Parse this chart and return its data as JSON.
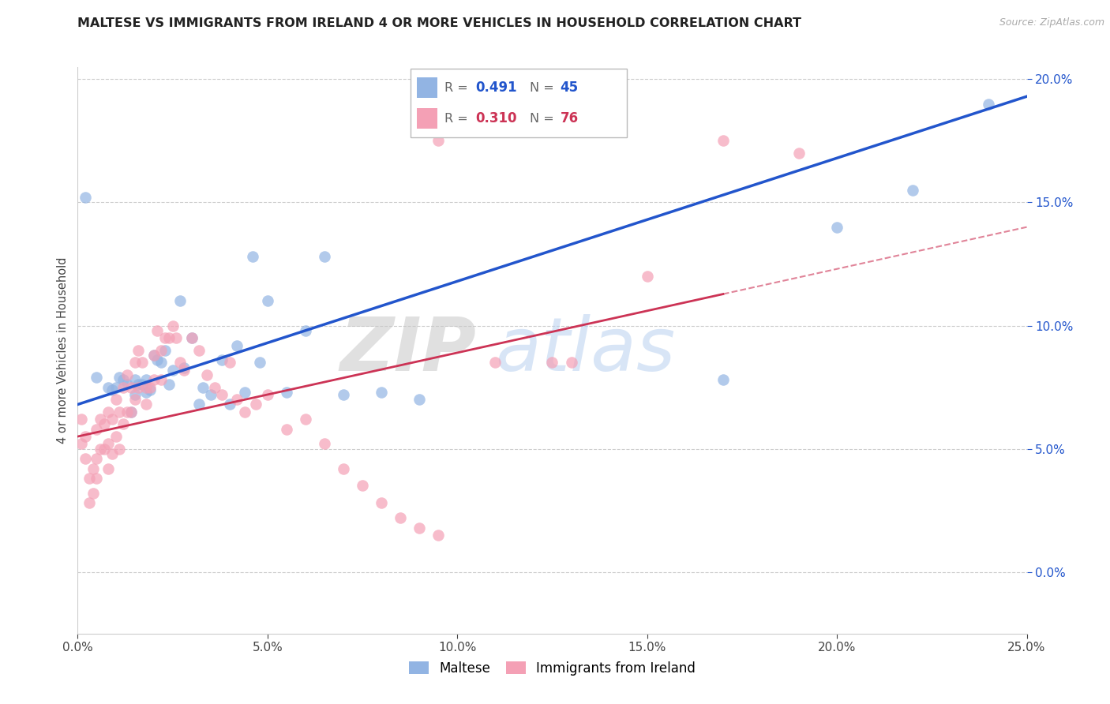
{
  "title": "MALTESE VS IMMIGRANTS FROM IRELAND 4 OR MORE VEHICLES IN HOUSEHOLD CORRELATION CHART",
  "source": "Source: ZipAtlas.com",
  "ylabel": "4 or more Vehicles in Household",
  "legend_label1": "Maltese",
  "legend_label2": "Immigrants from Ireland",
  "r1": 0.491,
  "n1": 45,
  "r2": 0.31,
  "n2": 76,
  "color1": "#92b4e3",
  "color2": "#f4a0b5",
  "line_color1": "#2255cc",
  "line_color2": "#cc3355",
  "watermark_zip": "ZIP",
  "watermark_atlas": "atlas",
  "xmin": 0.0,
  "xmax": 0.25,
  "ymin": -0.025,
  "ymax": 0.205,
  "yticks": [
    0.0,
    0.05,
    0.1,
    0.15,
    0.2
  ],
  "xticks": [
    0.0,
    0.05,
    0.1,
    0.15,
    0.2,
    0.25
  ],
  "blue_x": [
    0.005,
    0.008,
    0.009,
    0.01,
    0.011,
    0.012,
    0.013,
    0.014,
    0.015,
    0.015,
    0.016,
    0.017,
    0.018,
    0.018,
    0.019,
    0.02,
    0.021,
    0.022,
    0.023,
    0.024,
    0.025,
    0.027,
    0.028,
    0.03,
    0.032,
    0.033,
    0.035,
    0.038,
    0.04,
    0.042,
    0.044,
    0.046,
    0.048,
    0.05,
    0.055,
    0.06,
    0.065,
    0.07,
    0.08,
    0.09,
    0.17,
    0.2,
    0.22,
    0.24,
    0.002
  ],
  "blue_y": [
    0.079,
    0.075,
    0.074,
    0.075,
    0.079,
    0.078,
    0.076,
    0.065,
    0.078,
    0.072,
    0.076,
    0.076,
    0.073,
    0.078,
    0.074,
    0.088,
    0.086,
    0.085,
    0.09,
    0.076,
    0.082,
    0.11,
    0.083,
    0.095,
    0.068,
    0.075,
    0.072,
    0.086,
    0.068,
    0.092,
    0.073,
    0.128,
    0.085,
    0.11,
    0.073,
    0.098,
    0.128,
    0.072,
    0.073,
    0.07,
    0.078,
    0.14,
    0.155,
    0.19,
    0.152
  ],
  "pink_x": [
    0.001,
    0.001,
    0.002,
    0.002,
    0.003,
    0.003,
    0.004,
    0.004,
    0.005,
    0.005,
    0.005,
    0.006,
    0.006,
    0.007,
    0.007,
    0.008,
    0.008,
    0.008,
    0.009,
    0.009,
    0.01,
    0.01,
    0.011,
    0.011,
    0.012,
    0.012,
    0.013,
    0.013,
    0.014,
    0.014,
    0.015,
    0.015,
    0.016,
    0.016,
    0.017,
    0.018,
    0.018,
    0.019,
    0.02,
    0.02,
    0.021,
    0.022,
    0.022,
    0.023,
    0.024,
    0.025,
    0.026,
    0.027,
    0.028,
    0.03,
    0.032,
    0.034,
    0.036,
    0.038,
    0.04,
    0.042,
    0.044,
    0.047,
    0.05,
    0.055,
    0.06,
    0.065,
    0.07,
    0.075,
    0.08,
    0.085,
    0.09,
    0.095,
    0.11,
    0.13,
    0.15,
    0.17,
    0.19,
    0.095,
    0.1,
    0.125
  ],
  "pink_y": [
    0.062,
    0.052,
    0.055,
    0.046,
    0.038,
    0.028,
    0.042,
    0.032,
    0.058,
    0.046,
    0.038,
    0.062,
    0.05,
    0.06,
    0.05,
    0.065,
    0.052,
    0.042,
    0.062,
    0.048,
    0.07,
    0.055,
    0.065,
    0.05,
    0.075,
    0.06,
    0.08,
    0.065,
    0.075,
    0.065,
    0.085,
    0.07,
    0.09,
    0.075,
    0.085,
    0.075,
    0.068,
    0.075,
    0.088,
    0.078,
    0.098,
    0.09,
    0.078,
    0.095,
    0.095,
    0.1,
    0.095,
    0.085,
    0.082,
    0.095,
    0.09,
    0.08,
    0.075,
    0.072,
    0.085,
    0.07,
    0.065,
    0.068,
    0.072,
    0.058,
    0.062,
    0.052,
    0.042,
    0.035,
    0.028,
    0.022,
    0.018,
    0.015,
    0.085,
    0.085,
    0.12,
    0.175,
    0.17,
    0.175,
    0.185,
    0.085
  ]
}
